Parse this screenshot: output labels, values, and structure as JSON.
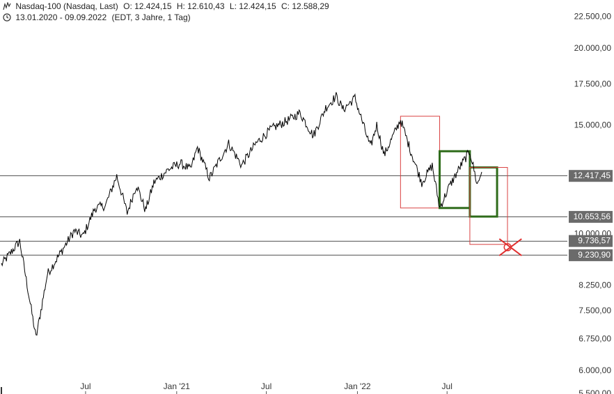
{
  "header": {
    "instrument": "Nasdaq-100 (Nasdaq, Last)",
    "open": "O: 12.424,15",
    "high": "H: 12.610,43",
    "low": "L: 12.424,15",
    "close": "C: 12.588,29",
    "date_range": "13.01.2020 - 09.09.2022",
    "settings": "(EDT, 3 Jahre, 1 Tag)"
  },
  "icons": {
    "instrument": "candlestick-chart-icon",
    "date": "clock-icon"
  },
  "colors": {
    "price": "#000000",
    "hline": "#555555",
    "red_box": "#d94040",
    "green_box": "#2e6b1a",
    "tag_bg": "#6b6b6b",
    "marker": "#e03030"
  },
  "chart_data": {
    "type": "line",
    "title": "Nasdaq-100 (Nasdaq, Last)",
    "y_scale": "log",
    "ylim": [
      5500,
      23500
    ],
    "y_ticks": [
      {
        "value": 22500,
        "label": "22.500,00"
      },
      {
        "value": 20000,
        "label": "20.000,00"
      },
      {
        "value": 17500,
        "label": "17.500,00"
      },
      {
        "value": 15000,
        "label": "15.000,00"
      },
      {
        "value": 10000,
        "label": "10.000,00"
      },
      {
        "value": 8250,
        "label": "8.250,00"
      },
      {
        "value": 7500,
        "label": "7.500,00"
      },
      {
        "value": 6750,
        "label": "6.750,00"
      },
      {
        "value": 6000,
        "label": "6.000,00"
      },
      {
        "value": 5500,
        "label": "5.500,00"
      }
    ],
    "x_range": [
      "2020-01-13",
      "2022-09-09"
    ],
    "x_ticks": [
      {
        "date": "2020-07-01",
        "label": "Jul"
      },
      {
        "date": "2021-01-01",
        "label": "Jan '21"
      },
      {
        "date": "2021-07-01",
        "label": "Jul"
      },
      {
        "date": "2022-01-01",
        "label": "Jan '22"
      },
      {
        "date": "2022-07-01",
        "label": "Jul"
      }
    ],
    "series": [
      {
        "x": [
          "2020-01-13",
          "2020-02-19",
          "2020-03-23",
          "2020-04-15",
          "2020-05-15",
          "2020-06-08",
          "2020-06-26",
          "2020-07-20",
          "2020-08-10",
          "2020-09-02",
          "2020-09-23",
          "2020-10-12",
          "2020-10-30",
          "2020-11-16",
          "2020-12-15",
          "2021-01-08",
          "2021-01-29",
          "2021-02-12",
          "2021-03-08",
          "2021-04-16",
          "2021-05-12",
          "2021-06-10",
          "2021-07-12",
          "2021-08-16",
          "2021-09-07",
          "2021-10-04",
          "2021-10-29",
          "2021-11-19",
          "2021-12-03",
          "2021-12-27",
          "2022-01-27",
          "2022-02-09",
          "2022-02-24",
          "2022-03-29",
          "2022-04-20",
          "2022-05-11",
          "2022-06-01",
          "2022-06-16",
          "2022-07-05",
          "2022-07-29",
          "2022-08-16",
          "2022-08-31",
          "2022-09-09"
        ],
        "y": [
          8900,
          9720,
          6770,
          8600,
          9400,
          10100,
          9900,
          11000,
          11100,
          12400,
          10800,
          12000,
          10900,
          12100,
          12700,
          13000,
          12700,
          13800,
          12300,
          14000,
          12900,
          14000,
          14800,
          15300,
          15700,
          14400,
          16000,
          16700,
          15900,
          16600,
          13800,
          15000,
          13400,
          15300,
          13500,
          12100,
          12900,
          11000,
          11900,
          12900,
          13600,
          12000,
          12588
        ]
      }
    ],
    "horizontal_lines": [
      {
        "value": 12417.45,
        "label": "12.417,45"
      },
      {
        "value": 10653.56,
        "label": "10.653,56"
      },
      {
        "value": 9736.57,
        "label": "9.736,57"
      },
      {
        "value": 9230.9,
        "label": "9.230,90"
      }
    ],
    "boxes": [
      {
        "color": "red",
        "x0": "2022-03-29",
        "x1": "2022-06-16",
        "y_top": 15500,
        "y_bottom": 11000
      },
      {
        "color": "green",
        "x0": "2022-06-16",
        "x1": "2022-08-16",
        "y_top": 13600,
        "y_bottom": 11000
      },
      {
        "color": "green",
        "x0": "2022-08-16",
        "x1": "2022-10-10",
        "y_top": 12800,
        "y_bottom": 10653.56
      },
      {
        "color": "red",
        "x0": "2022-08-16",
        "x1": "2022-10-31",
        "y_top": 12800,
        "y_bottom": 9600
      }
    ],
    "markers": [
      {
        "type": "cross",
        "date": "2022-11-06",
        "value": 9500
      }
    ],
    "grid": false,
    "legend": "none"
  }
}
